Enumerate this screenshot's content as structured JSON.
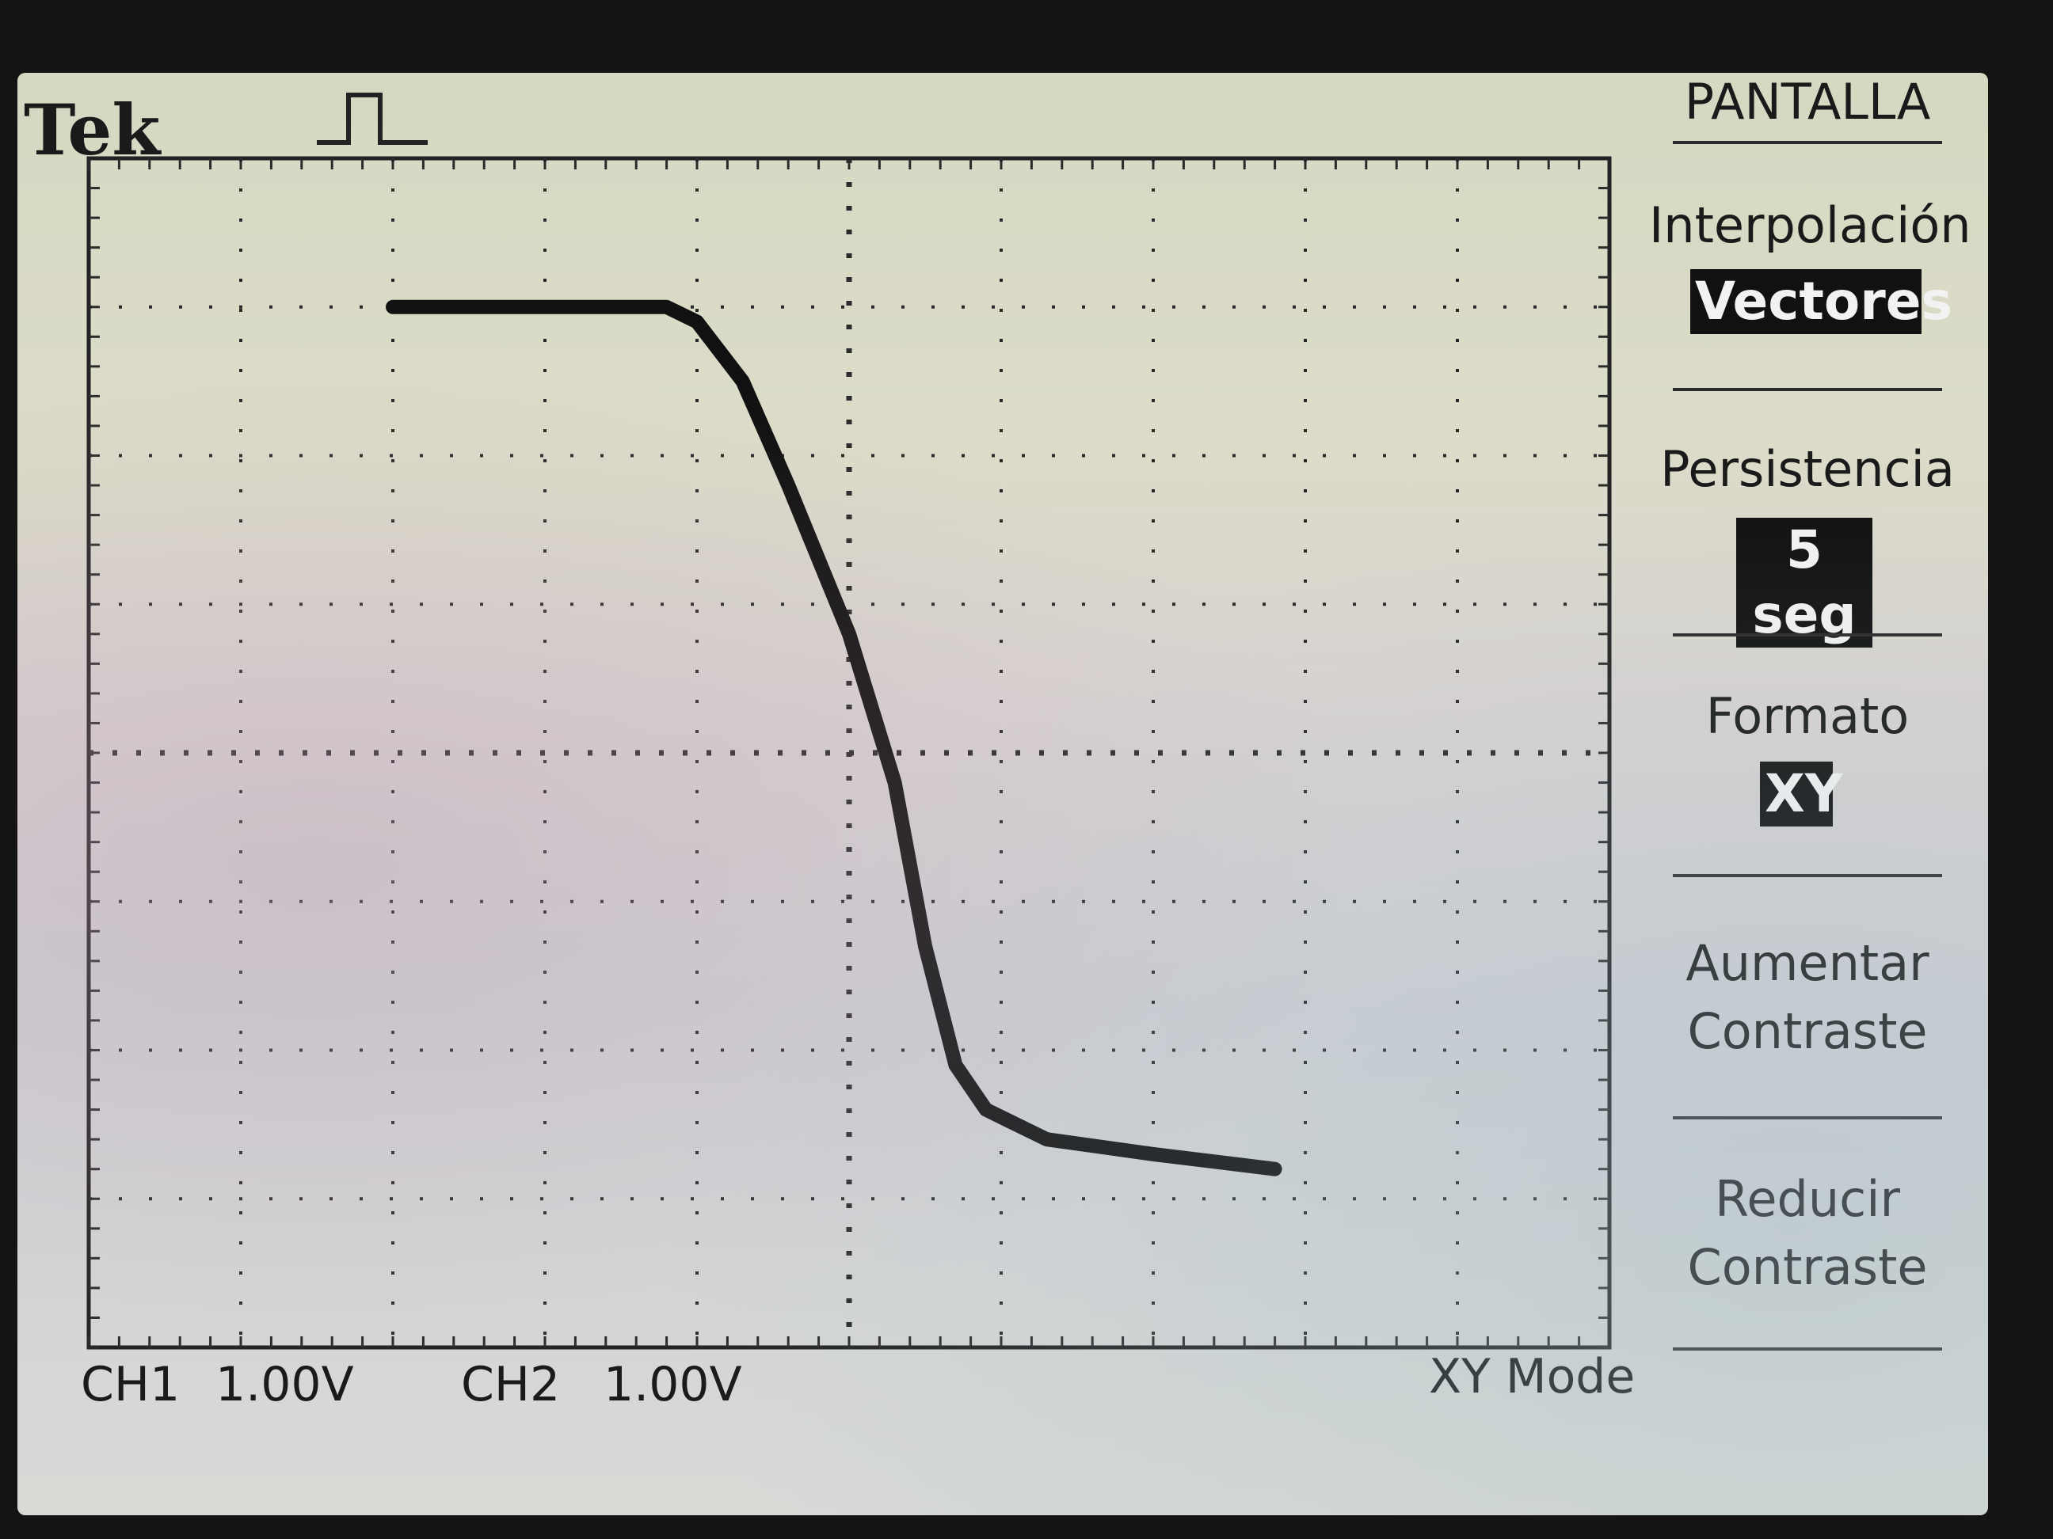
{
  "screen": {
    "brand": "Tek",
    "trigger_icon": "pulse-icon",
    "readouts": {
      "ch1_label": "CH1",
      "ch1_scale": "1.00V",
      "ch2_label": "CH2",
      "ch2_scale": "1.00V",
      "mode": "XY Mode"
    }
  },
  "menu": {
    "title": "PANTALLA",
    "items": [
      {
        "label": "Interpolación",
        "value": "Vectores"
      },
      {
        "label": "Persistencia",
        "value": "5 seg"
      },
      {
        "label": "Formato",
        "value": "XY"
      },
      {
        "label_line1": "Aumentar",
        "label_line2": "Contraste"
      },
      {
        "label_line1": "Reducir",
        "label_line2": "Contraste"
      }
    ]
  },
  "chart_data": {
    "type": "line",
    "grid": true,
    "xlim": [
      -5,
      5
    ],
    "ylim": [
      -4,
      4
    ],
    "units": "divisions",
    "series": [
      {
        "x": [
          -3.0,
          -1.2,
          -1.0,
          -0.7,
          -0.4,
          0.0,
          0.3,
          0.5,
          0.7,
          0.9,
          1.3,
          2.0,
          2.8
        ],
        "y": [
          3.0,
          3.0,
          2.9,
          2.5,
          1.8,
          0.8,
          -0.2,
          -1.3,
          -2.1,
          -2.4,
          -2.6,
          -2.7,
          -2.8
        ]
      }
    ]
  }
}
